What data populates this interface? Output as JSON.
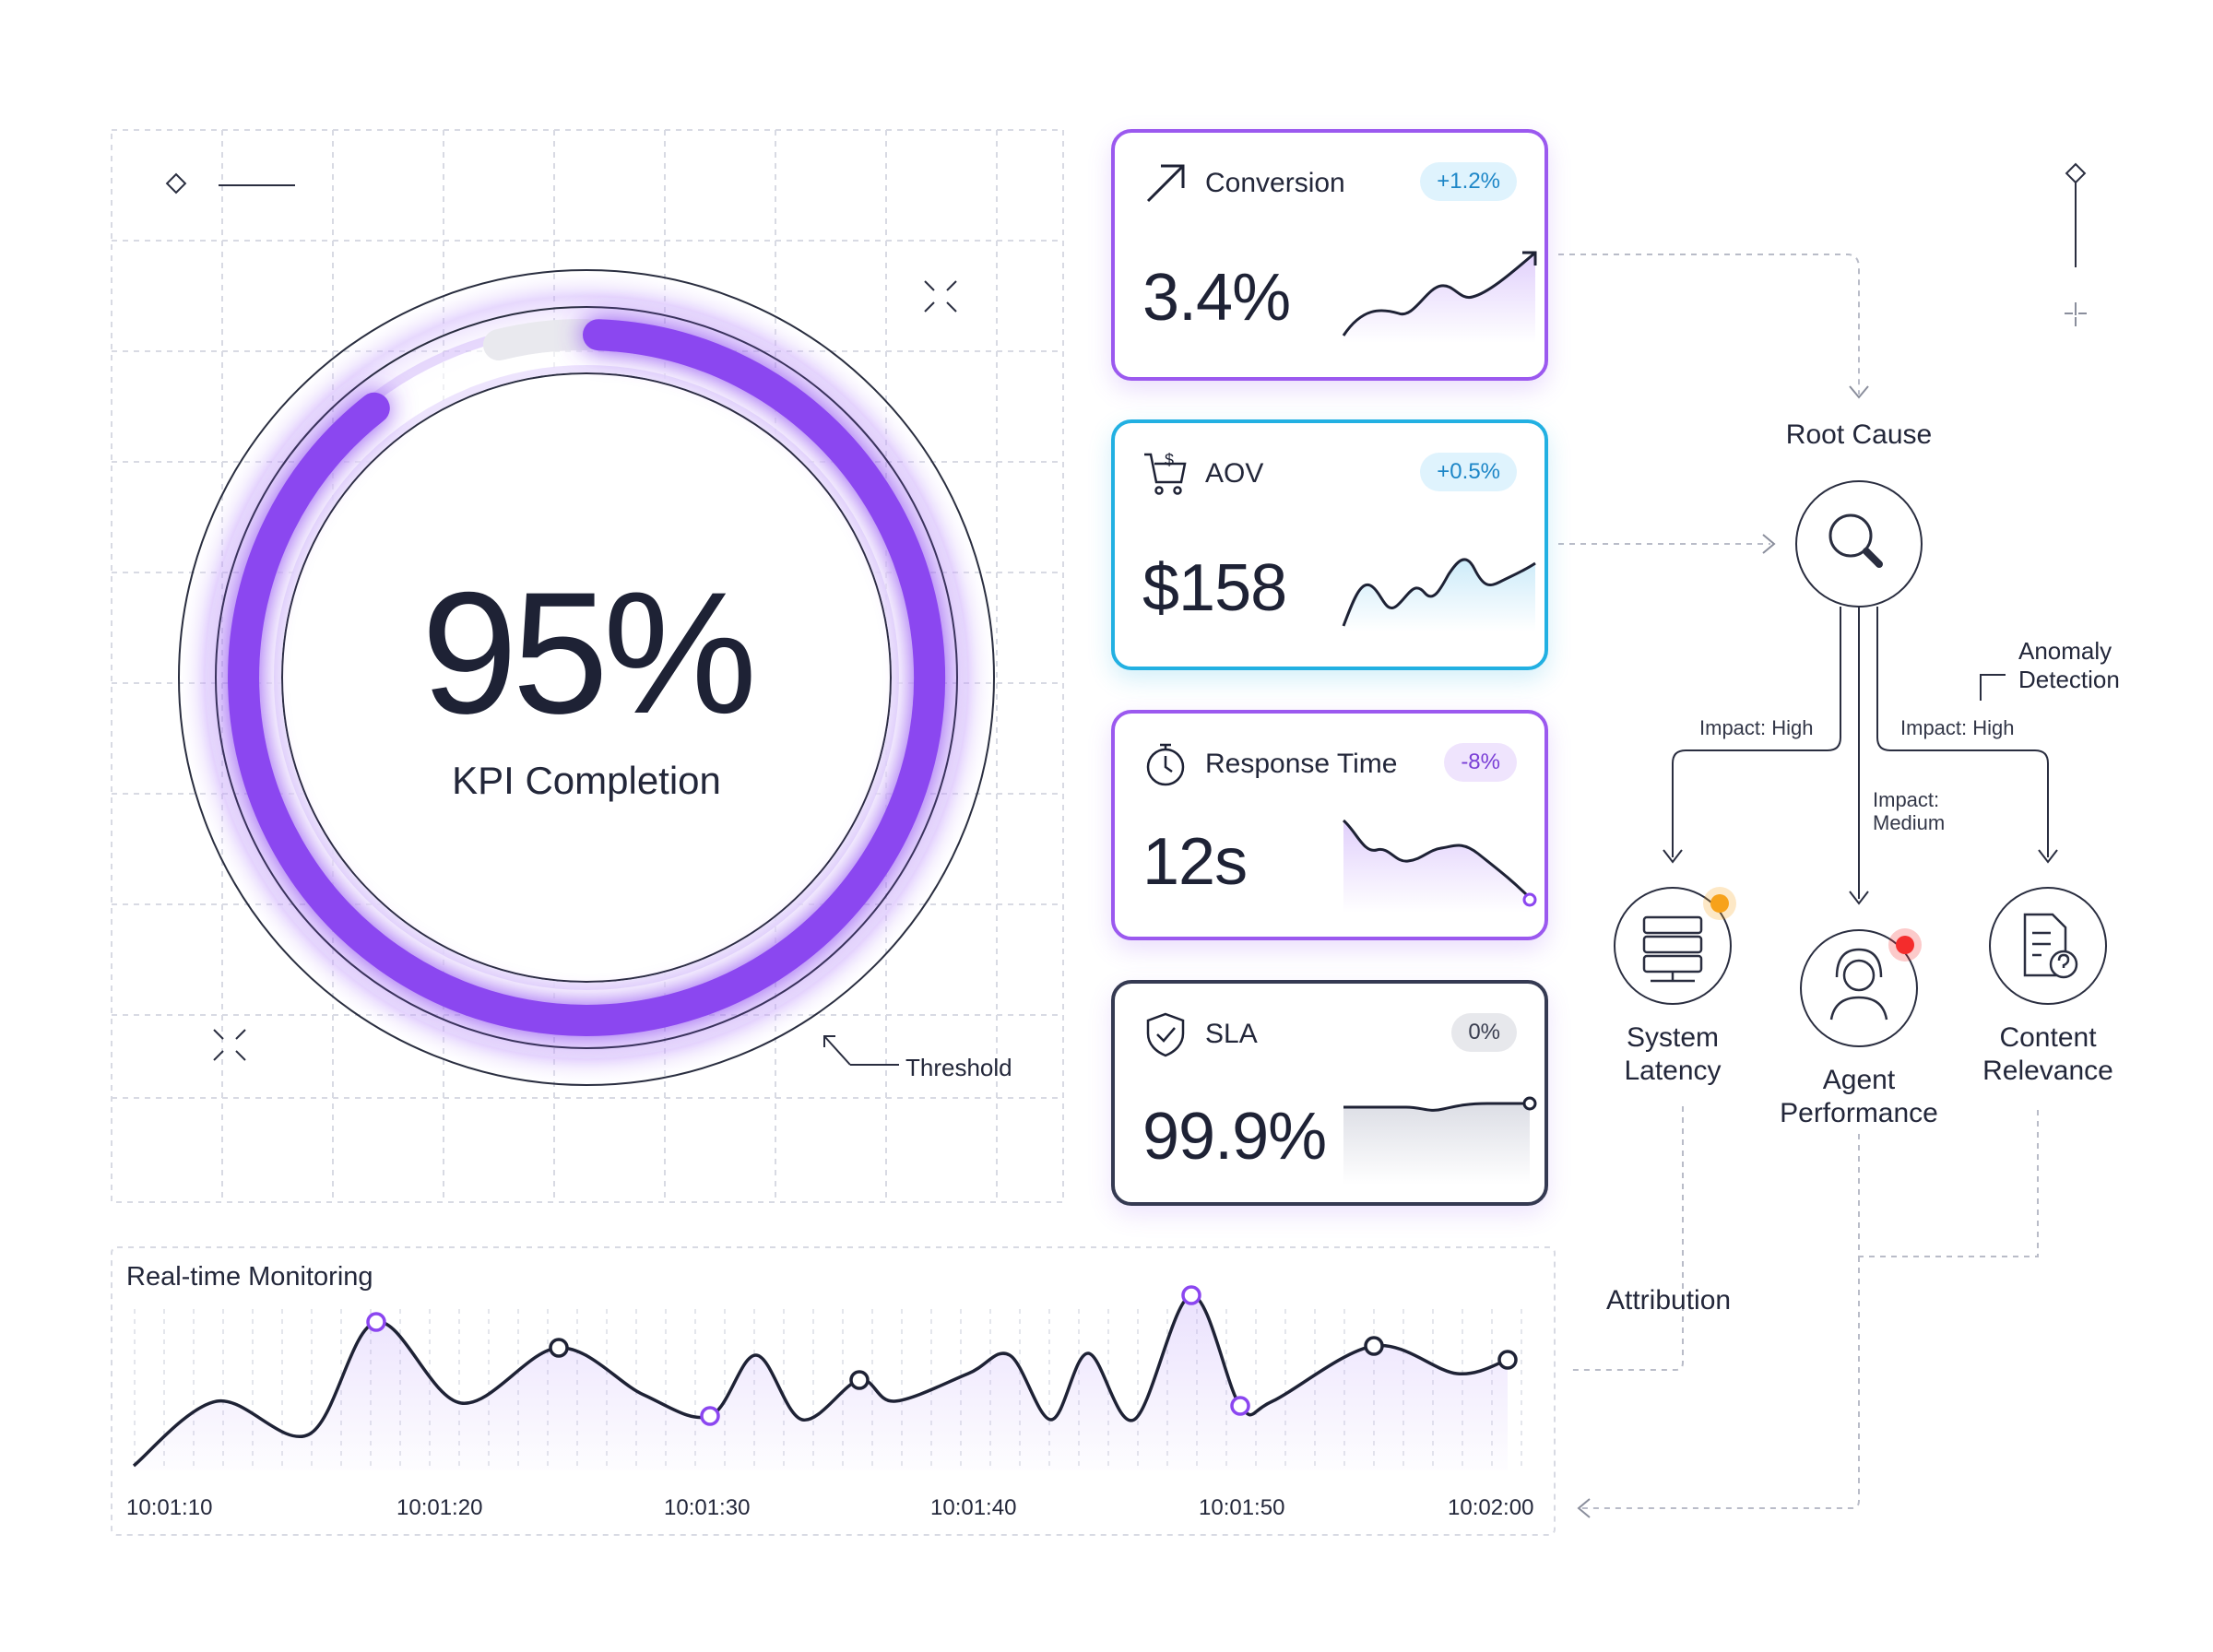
{
  "gauge": {
    "value": "95%",
    "label": "KPI Completion",
    "threshold_label": "Threshold",
    "progress": 0.95
  },
  "cards": [
    {
      "id": "conversion",
      "title": "Conversion",
      "badge": "+1.2%",
      "value": "3.4%",
      "icon": "trend-up-arrow-icon"
    },
    {
      "id": "aov",
      "title": "AOV",
      "badge": "+0.5%",
      "value": "$158",
      "icon": "shopping-cart-dollar-icon"
    },
    {
      "id": "response",
      "title": "Response Time",
      "badge": "-8%",
      "value": "12s",
      "icon": "stopwatch-icon"
    },
    {
      "id": "sla",
      "title": "SLA",
      "badge": "0%",
      "value": "99.9%",
      "icon": "shield-check-icon"
    }
  ],
  "root_cause": {
    "title": "Root Cause",
    "anomaly_line1": "Anomaly",
    "anomaly_line2": "Detection",
    "impacts": {
      "left": "Impact: High",
      "center_line1": "Impact:",
      "center_line2": "Medium",
      "right": "Impact: High"
    },
    "nodes": [
      {
        "line1": "System",
        "line2": "Latency",
        "status_color": "#f7a21b",
        "icon": "server-icon"
      },
      {
        "line1": "Agent",
        "line2": "Performance",
        "status_color": "#f52d2d",
        "icon": "headset-agent-icon"
      },
      {
        "line1": "Content",
        "line2": "Relevance",
        "status_color": null,
        "icon": "document-question-icon"
      }
    ],
    "attribution": "Attribution"
  },
  "monitoring": {
    "title": "Real-time Monitoring",
    "ticks": [
      "10:01:10",
      "10:01:20",
      "10:01:30",
      "10:01:40",
      "10:01:50",
      "10:02:00"
    ]
  },
  "colors": {
    "accent": "#8b46f0",
    "aov": "#22b0e2",
    "dark": "#1e2235"
  }
}
